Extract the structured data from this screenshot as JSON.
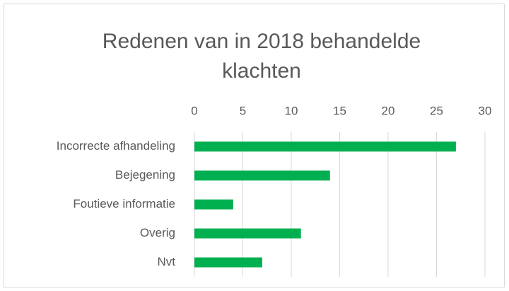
{
  "chart_data": {
    "type": "barh",
    "title": "Redenen van in 2018 behandelde klachten",
    "categories": [
      "Incorrecte afhandeling",
      "Bejegening",
      "Foutieve informatie",
      "Overig",
      "Nvt"
    ],
    "values": [
      27,
      14,
      4,
      11,
      7
    ],
    "color": "#00b050",
    "xlim": [
      0,
      30
    ],
    "xticks": [
      0,
      5,
      10,
      15,
      20,
      25,
      30
    ],
    "grid": true
  }
}
